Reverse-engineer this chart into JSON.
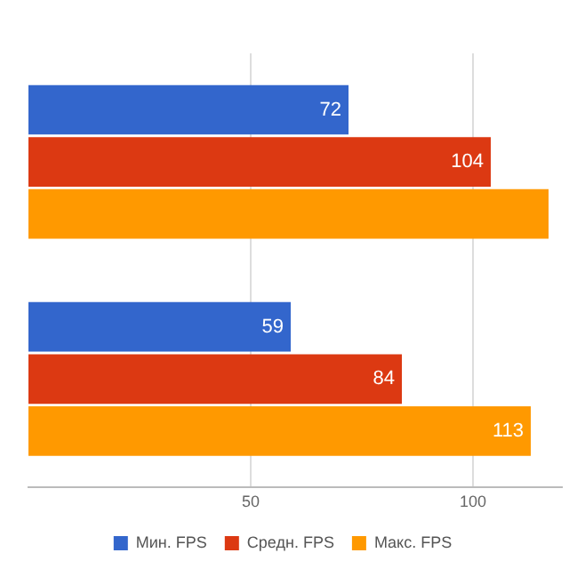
{
  "chart_data": {
    "type": "bar",
    "orientation": "horizontal",
    "categories": [
      null,
      null
    ],
    "series": [
      {
        "name": "Мин. FPS",
        "color": "#3366cc",
        "values": [
          72,
          59
        ],
        "value_labels": [
          "72",
          "59"
        ]
      },
      {
        "name": "Средн. FPS",
        "color": "#dc3912",
        "values": [
          104,
          84
        ],
        "value_labels": [
          "104",
          "84"
        ]
      },
      {
        "name": "Макс. FPS",
        "color": "#ff9900",
        "values": [
          117,
          113
        ],
        "value_labels": [
          null,
          "113"
        ]
      }
    ],
    "xlim": [
      0,
      120
    ],
    "xticks": [
      50,
      100
    ],
    "grid": "x",
    "legend": "bottom"
  }
}
